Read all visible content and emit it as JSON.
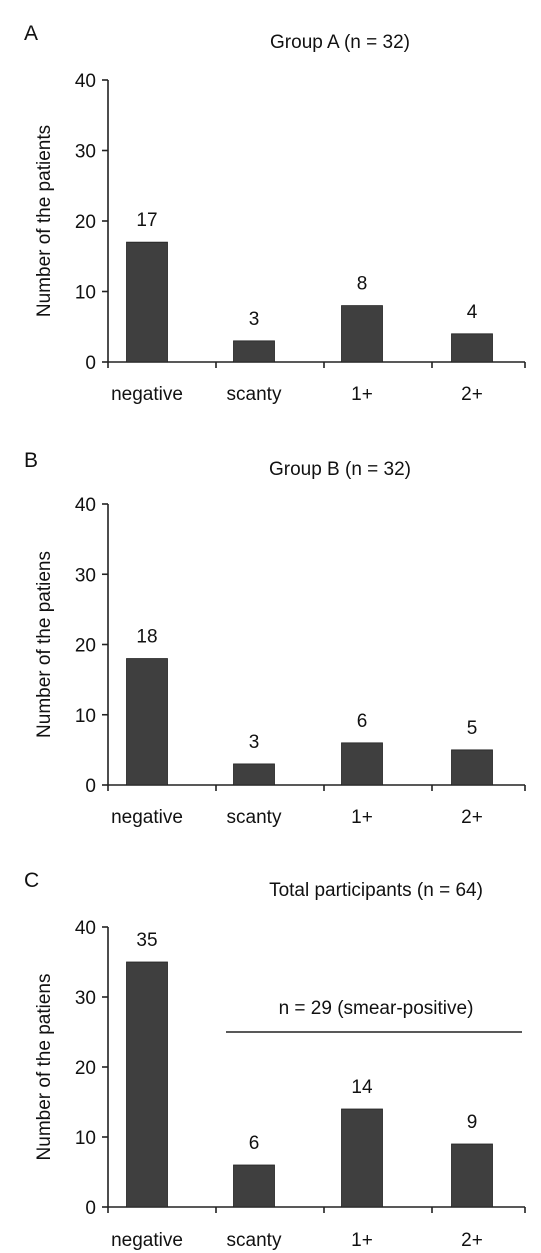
{
  "chart_data": [
    {
      "type": "bar",
      "panel": "A",
      "title": "Group A (n = 32)",
      "ylabel": "Number of the patients",
      "xlabel": "",
      "categories": [
        "negative",
        "scanty",
        "1+",
        "2+"
      ],
      "values": [
        17,
        3,
        8,
        4
      ],
      "ylim": [
        0,
        40
      ],
      "yticks": [
        0,
        10,
        20,
        30,
        40
      ],
      "bar_color": "#3f3f3f",
      "grid": false,
      "legend": "none"
    },
    {
      "type": "bar",
      "panel": "B",
      "title": "Group B (n = 32)",
      "ylabel": "Number of  the patiens",
      "xlabel": "",
      "categories": [
        "negative",
        "scanty",
        "1+",
        "2+"
      ],
      "values": [
        18,
        3,
        6,
        5
      ],
      "ylim": [
        0,
        40
      ],
      "yticks": [
        0,
        10,
        20,
        30,
        40
      ],
      "bar_color": "#3f3f3f",
      "grid": false,
      "legend": "none"
    },
    {
      "type": "bar",
      "panel": "C",
      "title": "Total participants  (n = 64)",
      "ylabel": "Number of the patiens",
      "xlabel": "",
      "categories": [
        "negative",
        "scanty",
        "1+",
        "2+"
      ],
      "values": [
        35,
        6,
        14,
        9
      ],
      "ylim": [
        0,
        40
      ],
      "yticks": [
        0,
        10,
        20,
        30,
        40
      ],
      "bar_color": "#3f3f3f",
      "grid": false,
      "legend": "none",
      "annotation": {
        "text": "n = 29 (smear-positive)",
        "spans": [
          "scanty",
          "2+"
        ],
        "y": 25
      }
    }
  ]
}
